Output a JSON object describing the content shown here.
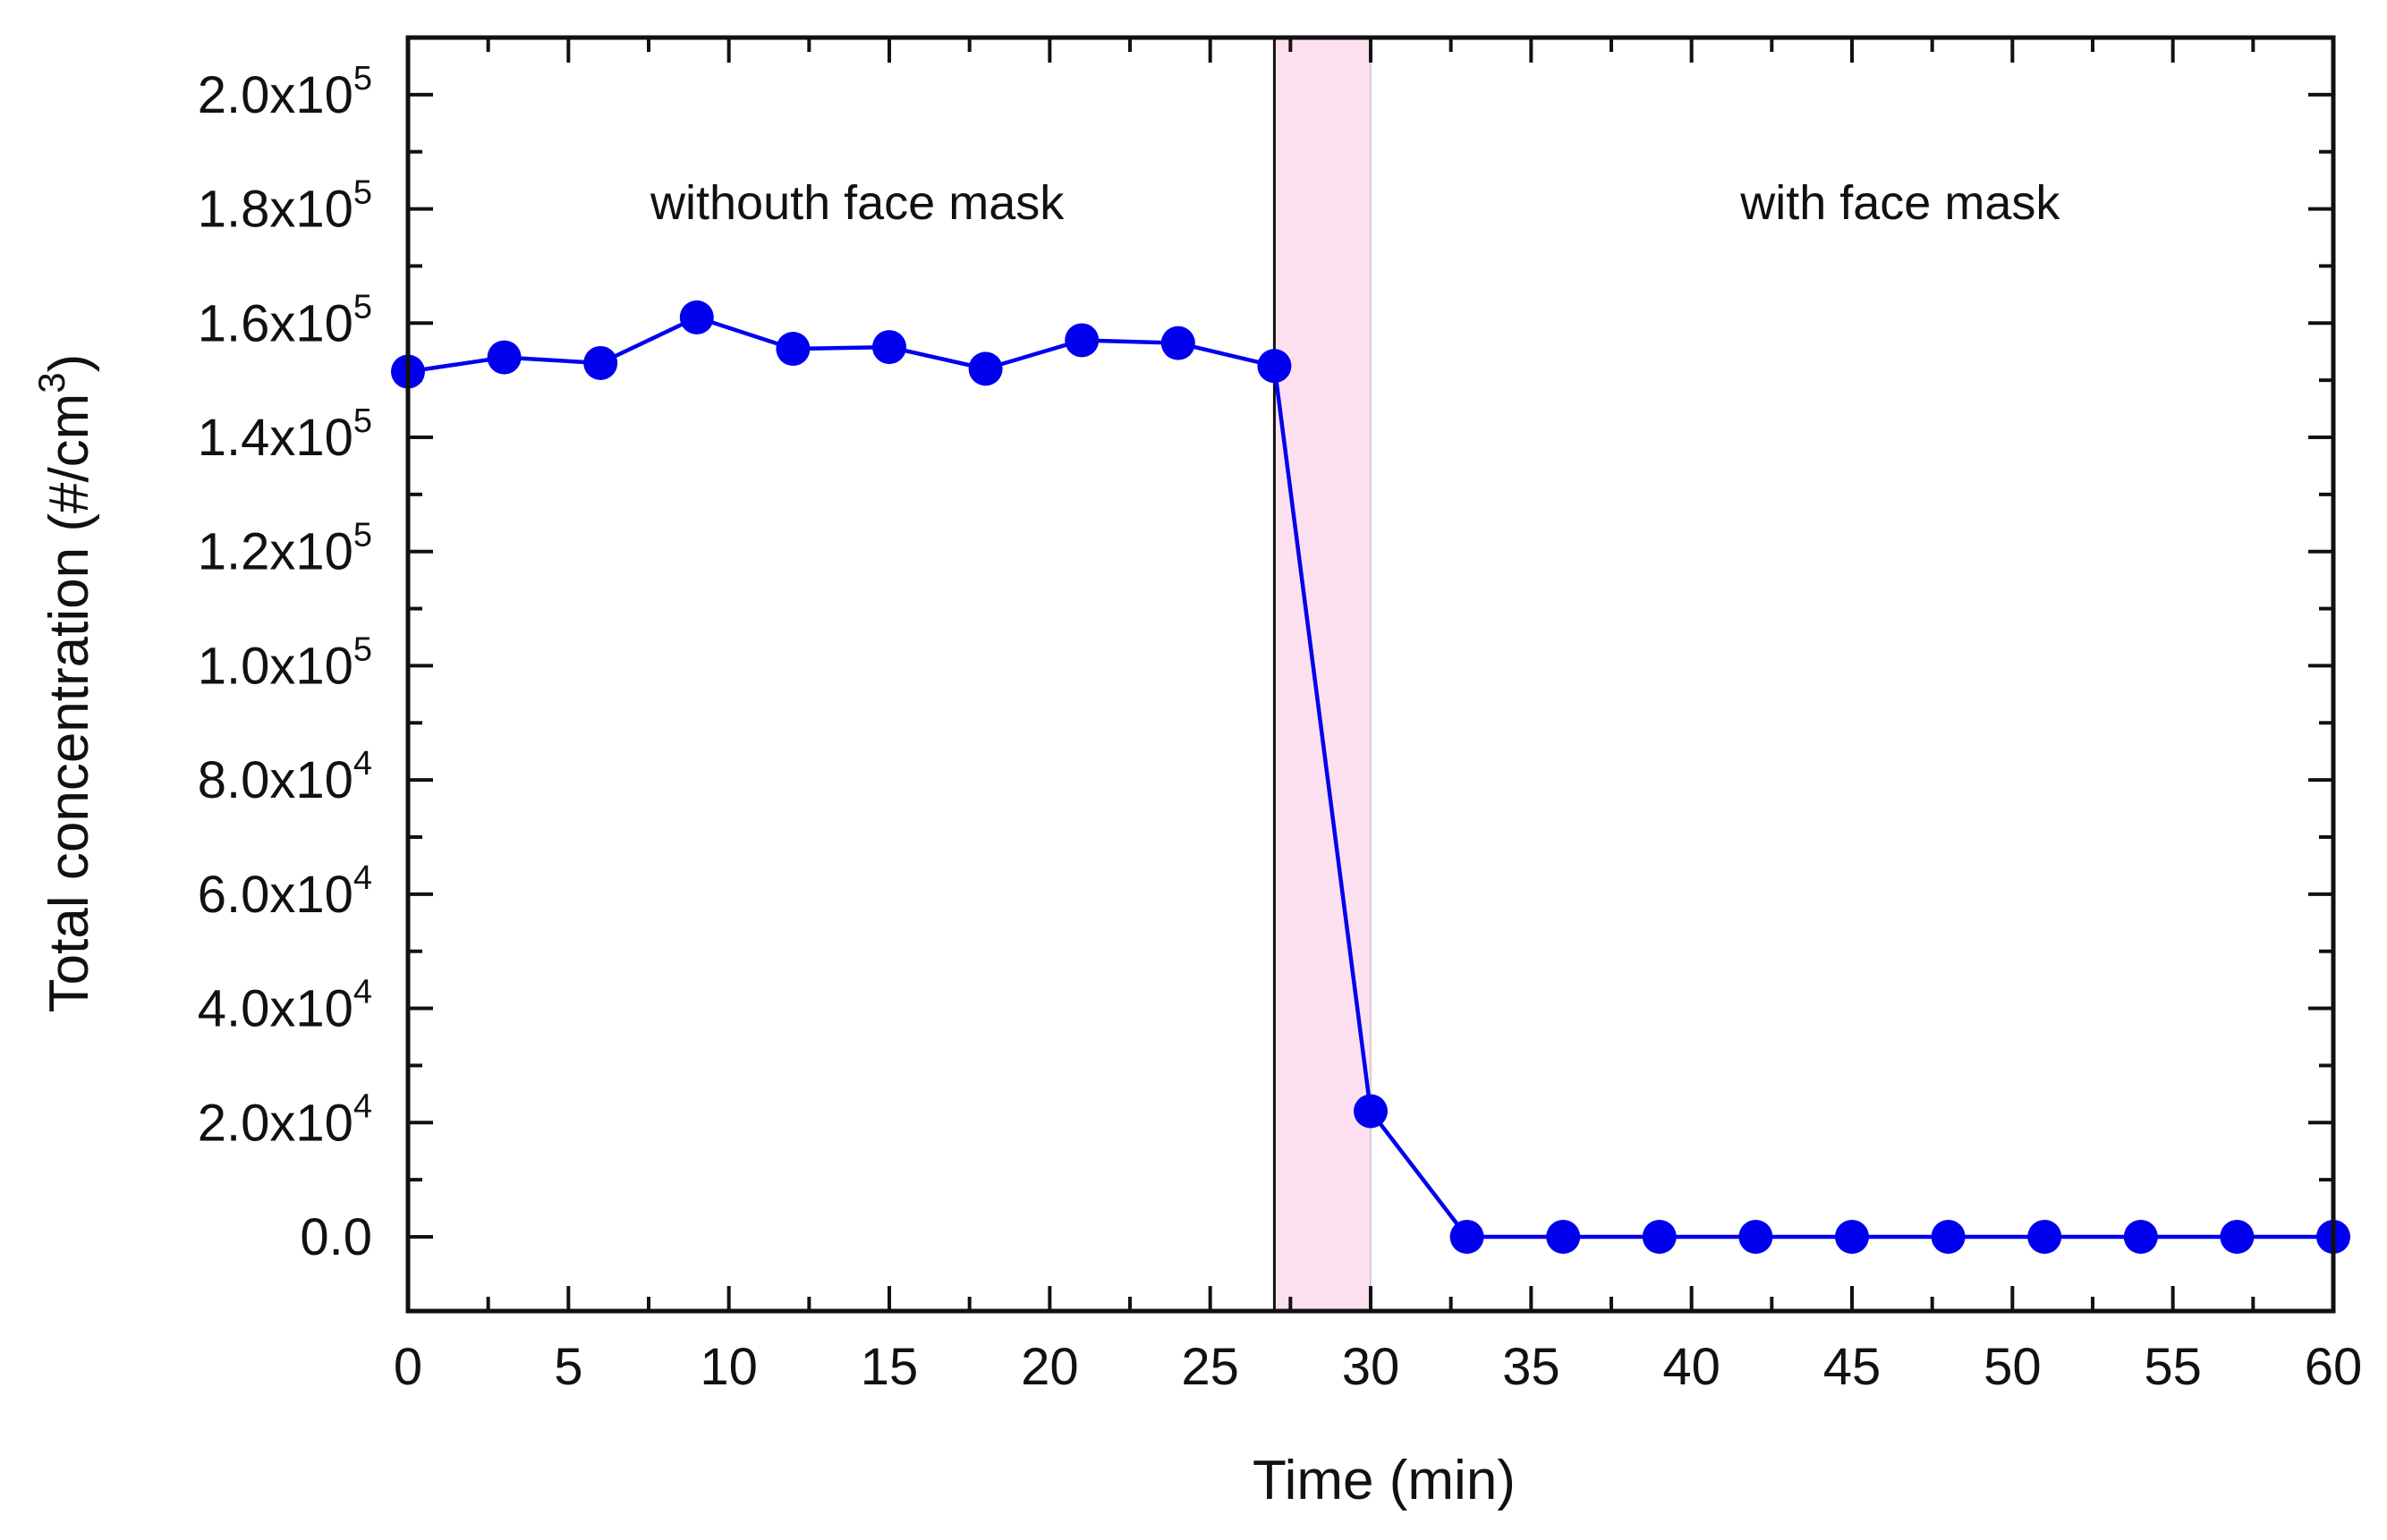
{
  "chart_data": {
    "type": "line",
    "title": "",
    "xlabel": "Time  (min)",
    "ylabel": "Total concentration  (#/cm",
    "ylabel_superscript": "3",
    "ylabel_suffix": ")",
    "xlim": [
      0,
      60
    ],
    "ylim": [
      -13000,
      210000
    ],
    "x_ticks": [
      0,
      5,
      10,
      15,
      20,
      25,
      30,
      35,
      40,
      45,
      50,
      55,
      60
    ],
    "x_tick_labels": [
      "0",
      "5",
      "10",
      "15",
      "20",
      "25",
      "30",
      "35",
      "40",
      "45",
      "50",
      "55",
      "60"
    ],
    "y_ticks": [
      {
        "value": 0,
        "mantissa": "0.0",
        "exponent": ""
      },
      {
        "value": 20000,
        "mantissa": "2.0x10",
        "exponent": "4"
      },
      {
        "value": 40000,
        "mantissa": "4.0x10",
        "exponent": "4"
      },
      {
        "value": 60000,
        "mantissa": "6.0x10",
        "exponent": "4"
      },
      {
        "value": 80000,
        "mantissa": "8.0x10",
        "exponent": "4"
      },
      {
        "value": 100000,
        "mantissa": "1.0x10",
        "exponent": "5"
      },
      {
        "value": 120000,
        "mantissa": "1.2x10",
        "exponent": "5"
      },
      {
        "value": 140000,
        "mantissa": "1.4x10",
        "exponent": "5"
      },
      {
        "value": 160000,
        "mantissa": "1.6x10",
        "exponent": "5"
      },
      {
        "value": 180000,
        "mantissa": "1.8x10",
        "exponent": "5"
      },
      {
        "value": 200000,
        "mantissa": "2.0x10",
        "exponent": "5"
      }
    ],
    "shaded_region": {
      "x_start": 27,
      "x_end": 30,
      "color": "#fde0ef"
    },
    "vertical_line_x": 27,
    "series": [
      {
        "name": "Total concentration",
        "color": "#0000ee",
        "x": [
          0,
          3,
          6,
          9,
          12,
          15,
          18,
          21,
          24,
          27,
          30,
          33,
          36,
          39,
          42,
          45,
          48,
          51,
          54,
          57,
          60
        ],
        "y": [
          151500,
          154000,
          153000,
          161000,
          155500,
          155800,
          152000,
          157000,
          156500,
          152500,
          22000,
          0,
          0,
          0,
          0,
          0,
          0,
          0,
          0,
          0,
          0
        ]
      }
    ],
    "annotations": [
      {
        "text": "withouth face mask",
        "x": 14,
        "y": 181000
      },
      {
        "text": "with face mask",
        "x": 46.5,
        "y": 181000
      }
    ]
  }
}
